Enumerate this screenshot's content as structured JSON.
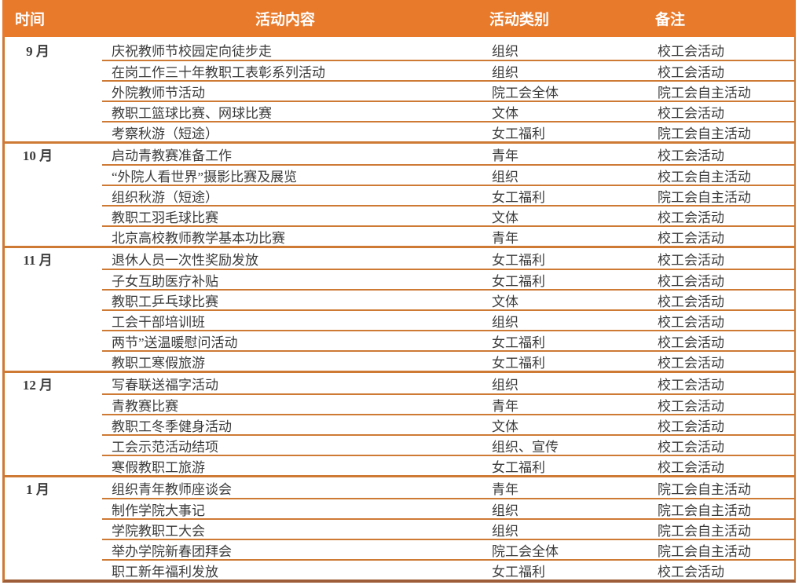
{
  "table": {
    "columns": [
      "时间",
      "活动内容",
      "活动类别",
      "备注"
    ],
    "colors": {
      "header_bg": "#E87A2C",
      "separator_line": "#CE7A35",
      "bottom_border": "#9C5D38",
      "header_text": "#FFFFFF",
      "body_text": "#3B3B3B"
    },
    "groups": [
      {
        "month": "9 月",
        "rows": [
          {
            "content": "庆祝教师节校园定向徒步走",
            "category": "组织",
            "note": "校工会活动"
          },
          {
            "content": "在岗工作三十年教职工表彰系列活动",
            "category": "组织",
            "note": "校工会活动"
          },
          {
            "content": "外院教师节活动",
            "category": "院工会全体",
            "note": "院工会自主活动"
          },
          {
            "content": "教职工篮球比赛、网球比赛",
            "category": "文体",
            "note": "校工会活动"
          },
          {
            "content": "考察秋游（短途）",
            "category": "女工福利",
            "note": "院工会自主活动"
          }
        ]
      },
      {
        "month": "10 月",
        "rows": [
          {
            "content": "启动青教赛准备工作",
            "category": "青年",
            "note": "校工会活动"
          },
          {
            "content": "“外院人看世界”摄影比赛及展览",
            "category": "组织",
            "note": "校工会自主活动"
          },
          {
            "content": "组织秋游（短途）",
            "category": "女工福利",
            "note": "院工会自主活动"
          },
          {
            "content": "教职工羽毛球比赛",
            "category": "文体",
            "note": "校工会活动"
          },
          {
            "content": "北京高校教师教学基本功比赛",
            "category": "青年",
            "note": "校工会活动"
          }
        ]
      },
      {
        "month": "11 月",
        "rows": [
          {
            "content": "退休人员一次性奖励发放",
            "category": "女工福利",
            "note": "校工会活动"
          },
          {
            "content": "子女互助医疗补贴",
            "category": "女工福利",
            "note": "校工会活动"
          },
          {
            "content": "教职工乒乓球比赛",
            "category": "文体",
            "note": "校工会活动"
          },
          {
            "content": "工会干部培训班",
            "category": "组织",
            "note": "校工会活动"
          },
          {
            "content": "两节”送温暖慰问活动",
            "category": "女工福利",
            "note": "校工会活动"
          },
          {
            "content": "教职工寒假旅游",
            "category": "女工福利",
            "note": "校工会活动"
          }
        ]
      },
      {
        "month": "12 月",
        "rows": [
          {
            "content": "写春联送福字活动",
            "category": "组织",
            "note": "校工会活动"
          },
          {
            "content": "青教赛比赛",
            "category": "青年",
            "note": "校工会活动"
          },
          {
            "content": "教职工冬季健身活动",
            "category": "文体",
            "note": "校工会活动"
          },
          {
            "content": "工会示范活动结项",
            "category": "组织、宣传",
            "note": "校工会活动"
          },
          {
            "content": "寒假教职工旅游",
            "category": "女工福利",
            "note": "校工会活动"
          }
        ]
      },
      {
        "month": "1 月",
        "rows": [
          {
            "content": "组织青年教师座谈会",
            "category": "青年",
            "note": "院工会自主活动"
          },
          {
            "content": "制作学院大事记",
            "category": "组织",
            "note": "院工会自主活动"
          },
          {
            "content": "学院教职工大会",
            "category": "组织",
            "note": "院工会自主活动"
          },
          {
            "content": "举办学院新春团拜会",
            "category": "院工会全体",
            "note": "院工会自主活动"
          },
          {
            "content": "职工新年福利发放",
            "category": "女工福利",
            "note": "校工会活动"
          }
        ]
      }
    ]
  }
}
